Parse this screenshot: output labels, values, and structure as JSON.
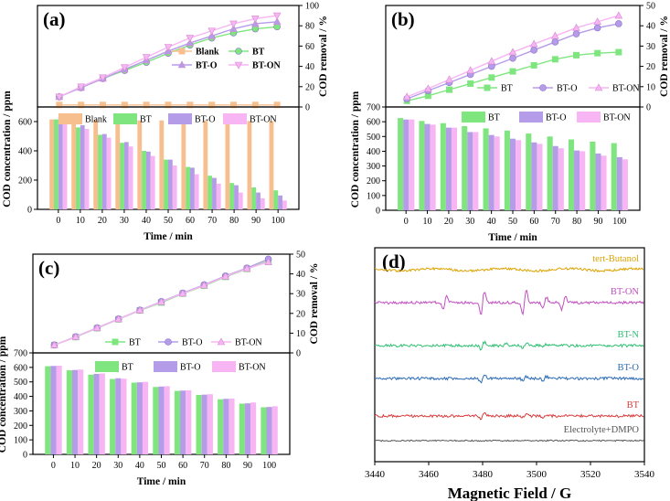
{
  "colors": {
    "Blank": "#f8bf8e",
    "BT": "#7fe67f",
    "BT-O": "#b59ce8",
    "BT-ON": "#f7b5f3",
    "BT_epr": "#d83b3b",
    "BT-O_epr": "#2c6cb8",
    "BT-N_epr": "#2fbf73",
    "BT-ON_epr": "#c04fc0",
    "tert_epr": "#dda300",
    "DMPO_epr": "#555555"
  },
  "chart_data": [
    {
      "id": "a",
      "panel_label": "(a)",
      "type": "line",
      "ylabel": "COD removal / %",
      "ylim": [
        0,
        100
      ],
      "yticks": [
        0,
        20,
        40,
        60,
        80,
        100
      ],
      "x": [
        0,
        10,
        20,
        30,
        40,
        50,
        60,
        70,
        80,
        90,
        100
      ],
      "legend": [
        "Blank",
        "BT",
        "BT-O",
        "BT-ON"
      ],
      "series": [
        {
          "name": "Blank",
          "values": [
            2,
            2,
            2,
            2,
            2,
            2,
            2,
            2,
            2,
            2,
            2
          ]
        },
        {
          "name": "BT",
          "values": [
            10,
            19,
            28,
            36,
            44,
            53,
            61,
            68,
            73,
            77,
            79
          ]
        },
        {
          "name": "BT-O",
          "values": [
            10,
            19,
            28,
            37,
            46,
            55,
            63,
            70,
            77,
            82,
            84
          ]
        },
        {
          "name": "BT-ON",
          "values": [
            10,
            20,
            29,
            39,
            49,
            59,
            68,
            75,
            82,
            87,
            90
          ]
        }
      ]
    },
    {
      "id": "a_bar",
      "type": "bar",
      "xlabel": "Time / min",
      "ylabel": "COD concentration / ppm",
      "ylim": [
        0,
        700
      ],
      "yticks": [
        0,
        200,
        400,
        600
      ],
      "categories": [
        "0",
        "10",
        "20",
        "30",
        "40",
        "50",
        "60",
        "70",
        "80",
        "90",
        "100"
      ],
      "legend": [
        "Blank",
        "BT",
        "BT-O",
        "BT-ON"
      ],
      "series": [
        {
          "name": "Blank",
          "values": [
            615,
            612,
            610,
            610,
            608,
            608,
            606,
            605,
            605,
            604,
            604
          ]
        },
        {
          "name": "BT",
          "values": [
            615,
            560,
            510,
            455,
            400,
            340,
            290,
            230,
            180,
            150,
            130
          ]
        },
        {
          "name": "BT-O",
          "values": [
            630,
            575,
            515,
            460,
            395,
            340,
            285,
            215,
            165,
            115,
            95
          ]
        },
        {
          "name": "BT-ON",
          "values": [
            615,
            550,
            490,
            430,
            365,
            300,
            240,
            175,
            115,
            75,
            60
          ]
        }
      ]
    },
    {
      "id": "b",
      "panel_label": "(b)",
      "type": "line",
      "ylabel": "COD removal / %",
      "ylim": [
        0,
        50
      ],
      "yticks": [
        0,
        10,
        20,
        30,
        40,
        50
      ],
      "x": [
        0,
        10,
        20,
        30,
        40,
        50,
        60,
        70,
        80,
        90,
        100
      ],
      "legend": [
        "BT",
        "BT-O",
        "BT-ON"
      ],
      "series": [
        {
          "name": "BT",
          "values": [
            3,
            5.5,
            8.5,
            11.5,
            14.5,
            17.5,
            20.5,
            23.5,
            25.5,
            26.5,
            27
          ]
        },
        {
          "name": "BT-O",
          "values": [
            4,
            8,
            12,
            16,
            20,
            24,
            28,
            32,
            36,
            39,
            41
          ]
        },
        {
          "name": "BT-ON",
          "values": [
            5,
            9,
            13.5,
            18,
            22.5,
            27,
            31,
            35,
            39,
            42,
            45
          ]
        }
      ]
    },
    {
      "id": "b_bar",
      "type": "bar",
      "xlabel": "Time / min",
      "ylabel": "COD concentration / ppm",
      "ylim": [
        0,
        700
      ],
      "yticks": [
        0,
        100,
        200,
        300,
        400,
        500,
        600,
        700
      ],
      "categories": [
        "0",
        "10",
        "20",
        "30",
        "40",
        "50",
        "60",
        "70",
        "80",
        "90",
        "100"
      ],
      "legend": [
        "BT",
        "BT-O",
        "BT-ON"
      ],
      "series": [
        {
          "name": "BT",
          "values": [
            625,
            605,
            590,
            570,
            555,
            540,
            520,
            500,
            480,
            465,
            455
          ]
        },
        {
          "name": "BT-O",
          "values": [
            615,
            585,
            560,
            530,
            510,
            485,
            460,
            435,
            405,
            385,
            360
          ]
        },
        {
          "name": "BT-ON",
          "values": [
            615,
            580,
            560,
            530,
            500,
            475,
            450,
            420,
            400,
            370,
            345
          ]
        }
      ]
    },
    {
      "id": "c",
      "panel_label": "(c)",
      "type": "line",
      "ylabel": "COD removal / %",
      "ylim": [
        0,
        50
      ],
      "yticks": [
        0,
        10,
        20,
        30,
        40,
        50
      ],
      "x": [
        0,
        10,
        20,
        30,
        40,
        50,
        60,
        70,
        80,
        90,
        100
      ],
      "legend": [
        "BT",
        "BT-O",
        "BT-ON"
      ],
      "series": [
        {
          "name": "BT",
          "values": [
            4,
            8,
            12.5,
            17,
            21.5,
            25.5,
            30,
            34,
            38.5,
            42.5,
            46.5
          ]
        },
        {
          "name": "BT-O",
          "values": [
            4,
            8.2,
            12.7,
            17.2,
            21.7,
            26,
            30.3,
            34.5,
            39,
            43,
            47.5
          ]
        },
        {
          "name": "BT-ON",
          "values": [
            4,
            8.1,
            12.6,
            17.1,
            21.6,
            25.8,
            30.1,
            34.2,
            38.7,
            42.7,
            46
          ]
        }
      ]
    },
    {
      "id": "c_bar",
      "type": "bar",
      "xlabel": "Time / min",
      "ylabel": "COD concentration / ppm",
      "ylim": [
        0,
        700
      ],
      "yticks": [
        0,
        100,
        200,
        300,
        400,
        500,
        600,
        700
      ],
      "categories": [
        "0",
        "10",
        "20",
        "30",
        "40",
        "50",
        "60",
        "70",
        "80",
        "90",
        "100"
      ],
      "legend": [
        "BT",
        "BT-O",
        "BT-ON"
      ],
      "series": [
        {
          "name": "BT",
          "values": [
            608,
            580,
            550,
            520,
            495,
            465,
            438,
            410,
            380,
            350,
            325
          ]
        },
        {
          "name": "BT-O",
          "values": [
            610,
            582,
            555,
            525,
            497,
            468,
            440,
            412,
            383,
            352,
            327
          ]
        },
        {
          "name": "BT-ON",
          "values": [
            612,
            585,
            558,
            522,
            500,
            470,
            442,
            415,
            385,
            358,
            332
          ]
        }
      ]
    },
    {
      "id": "d",
      "panel_label": "(d)",
      "type": "line",
      "xlabel": "Magnetic Field / G",
      "xlim": [
        3440,
        3540
      ],
      "xticks": [
        3440,
        3460,
        3480,
        3500,
        3520,
        3540
      ],
      "traces": [
        {
          "name": "tert-Butanol",
          "key": "tert_epr",
          "lines": []
        },
        {
          "name": "BT-ON",
          "key": "BT-ON_epr",
          "lines": [
            [
              3466,
              0.5
            ],
            [
              3480,
              0.9
            ],
            [
              3495.5,
              1.0
            ],
            [
              3503,
              0.45
            ],
            [
              3510,
              0.55
            ]
          ]
        },
        {
          "name": "BT-N",
          "key": "BT-N_epr",
          "lines": [
            [
              3480,
              0.45
            ],
            [
              3488,
              0.2
            ],
            [
              3495.5,
              0.35
            ],
            [
              3503,
              0.2
            ]
          ]
        },
        {
          "name": "BT-O",
          "key": "BT-O_epr",
          "lines": [
            [
              3480,
              0.6
            ],
            [
              3495.5,
              0.2
            ],
            [
              3503,
              0.25
            ]
          ]
        },
        {
          "name": "BT",
          "key": "BT_epr",
          "lines": [
            [
              3480,
              0.55
            ],
            [
              3495.5,
              0.15
            ],
            [
              3503,
              0.2
            ]
          ]
        },
        {
          "name": "Electrolyte+DMPO",
          "key": "DMPO_epr",
          "lines": []
        }
      ]
    }
  ]
}
